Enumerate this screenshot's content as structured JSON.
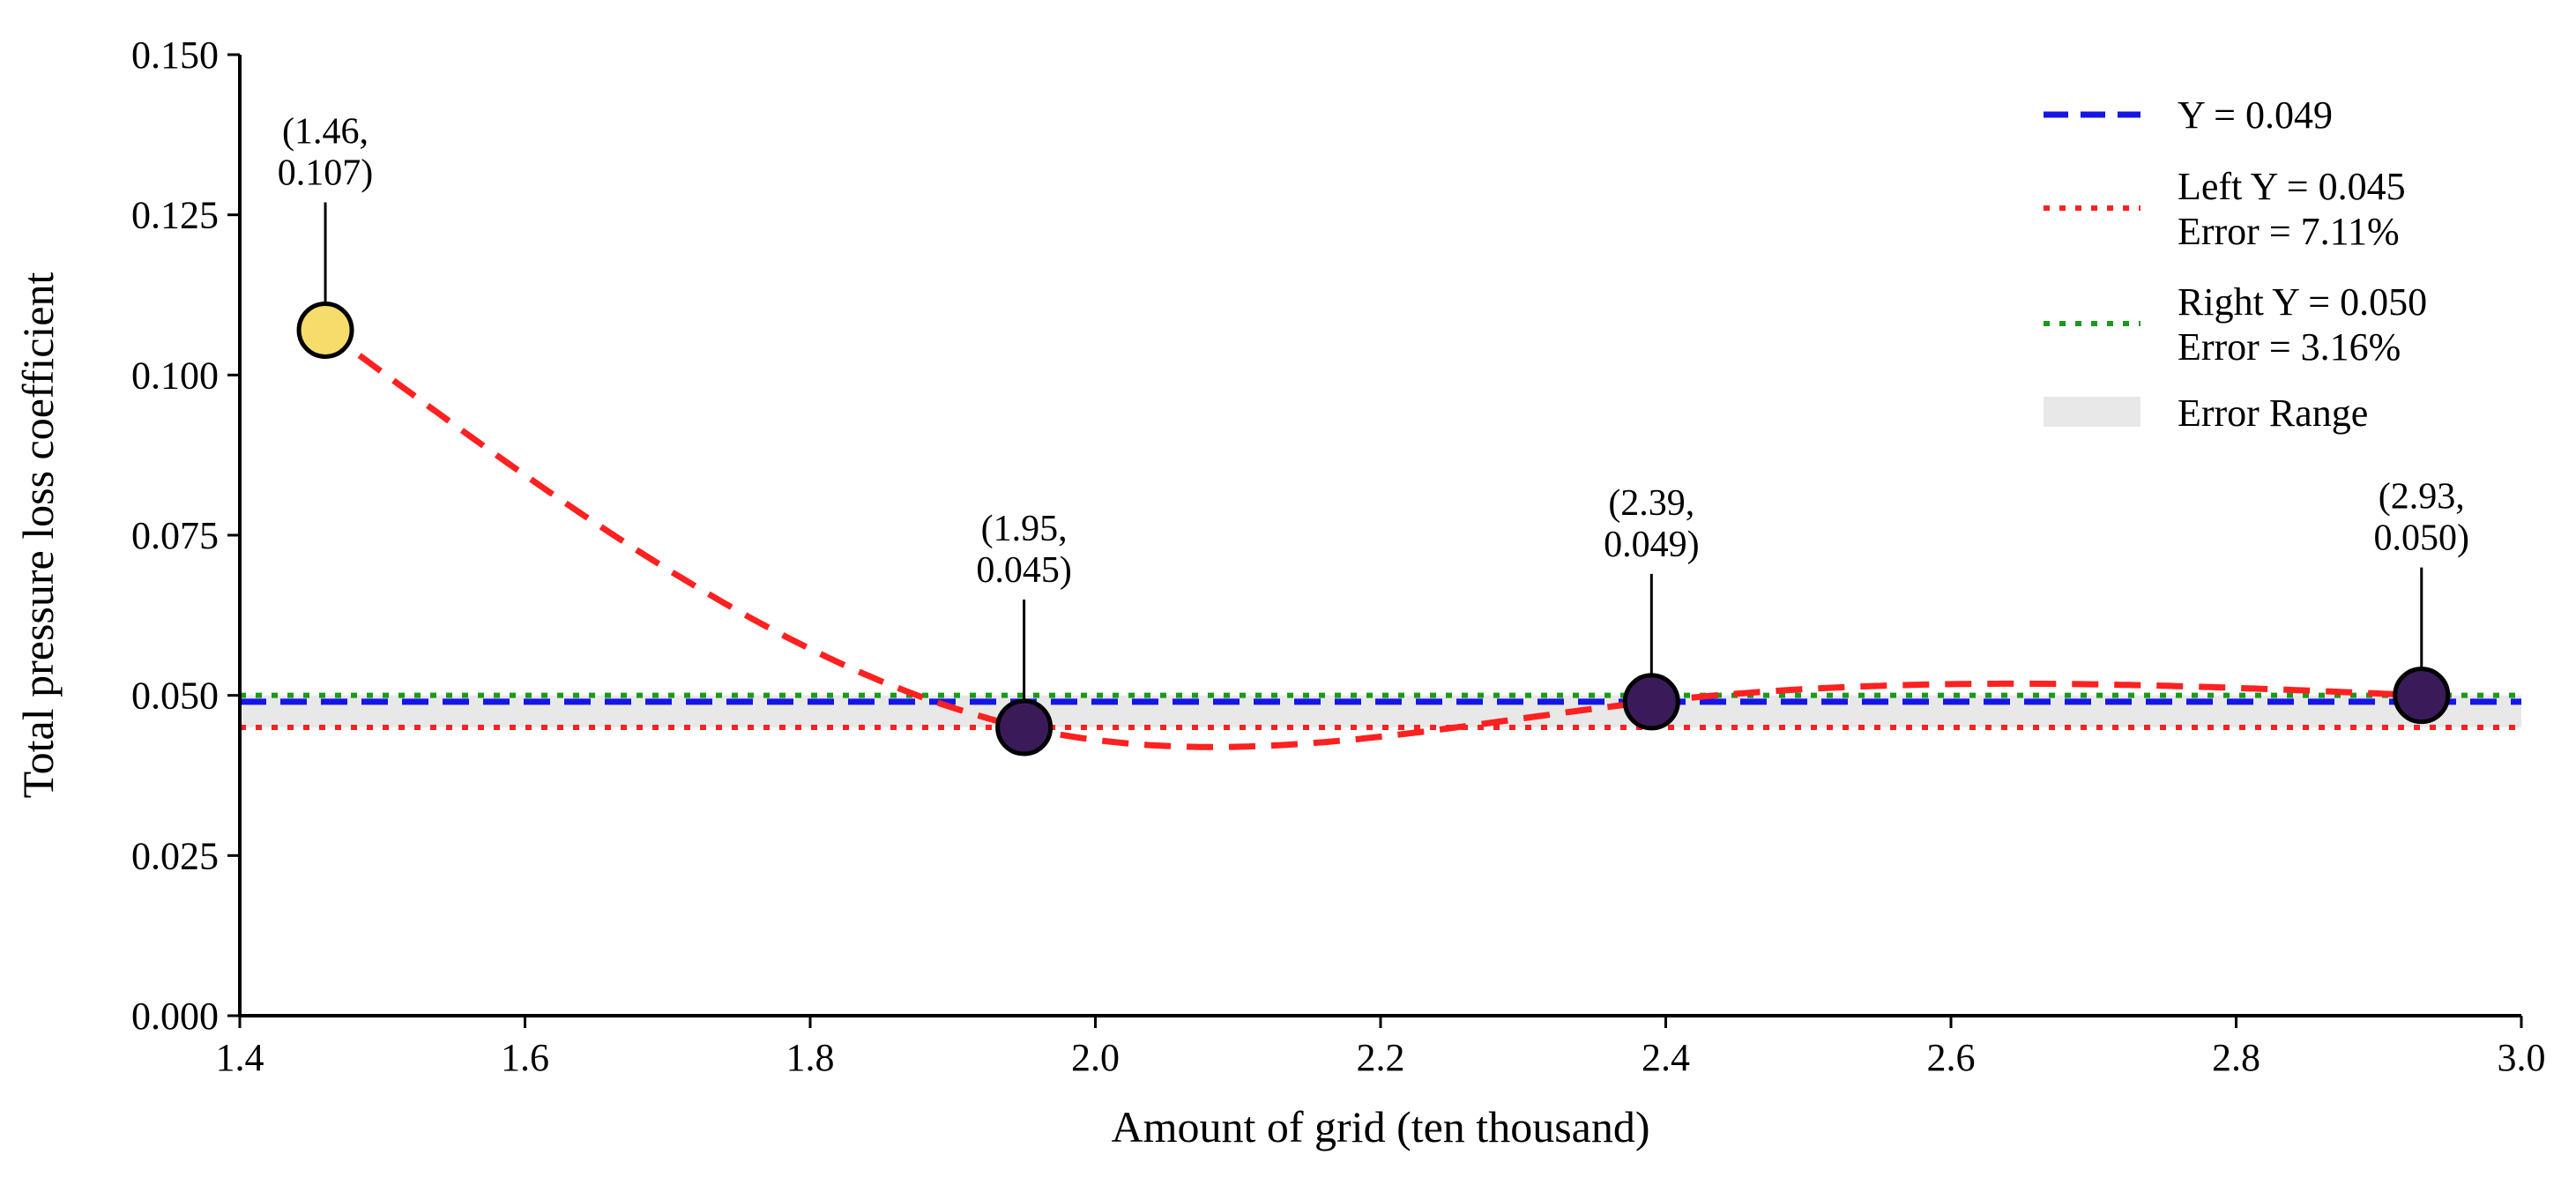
{
  "chart_data": {
    "type": "line",
    "title": "",
    "xlabel": "Amount of grid (ten thousand)",
    "ylabel": "Total pressure loss coefficient",
    "xlim": [
      1.4,
      3.0
    ],
    "ylim": [
      0.0,
      0.15
    ],
    "xticks": [
      "1.4",
      "1.6",
      "1.8",
      "2.0",
      "2.2",
      "2.4",
      "2.6",
      "2.8",
      "3.0"
    ],
    "yticks": [
      "0.000",
      "0.025",
      "0.050",
      "0.075",
      "0.100",
      "0.125",
      "0.150"
    ],
    "grid": false,
    "legend_position": "top-right",
    "points": [
      {
        "x": 1.46,
        "y": 0.107,
        "label": [
          "(1.46,",
          "0.107)"
        ],
        "color": "#f5dc6b"
      },
      {
        "x": 1.95,
        "y": 0.045,
        "label": [
          "(1.95,",
          "0.045)"
        ],
        "color": "#3b1a5a"
      },
      {
        "x": 2.39,
        "y": 0.049,
        "label": [
          "(2.39,",
          "0.049)"
        ],
        "color": "#3b1a5a"
      },
      {
        "x": 2.93,
        "y": 0.05,
        "label": [
          "(2.93,",
          "0.050)"
        ],
        "color": "#3b1a5a"
      }
    ],
    "fit_curve": {
      "style": "dashed",
      "color": "#ff2020"
    },
    "reference_lines": [
      {
        "name": "Y = 0.049",
        "y": 0.049,
        "style": "dashed",
        "color": "#1515e6"
      },
      {
        "name": "Left Y = 0.045",
        "detail": "Error = 7.11%",
        "y": 0.045,
        "style": "dotted",
        "color": "#ff2020"
      },
      {
        "name": "Right Y = 0.050",
        "detail": "Error = 3.16%",
        "y": 0.05,
        "style": "dotted",
        "color": "#1a9a1a"
      }
    ],
    "error_range": {
      "name": "Error Range",
      "y_low": 0.045,
      "y_high": 0.05,
      "color": "#e8e8e8"
    }
  }
}
